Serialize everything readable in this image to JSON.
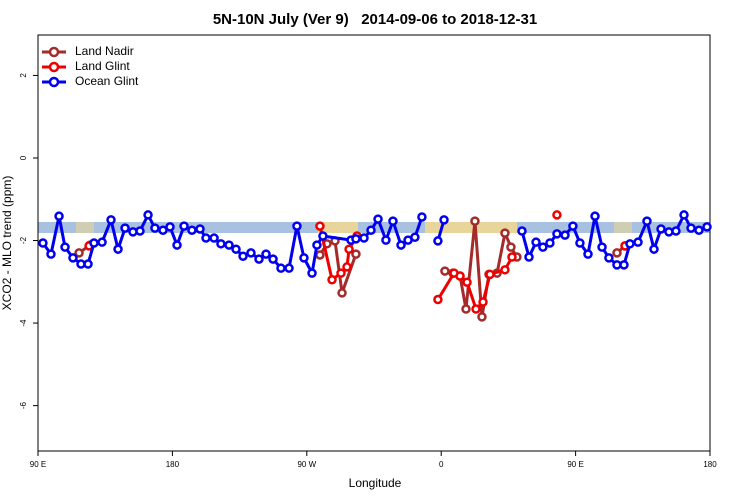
{
  "chart_data": {
    "type": "line",
    "title": "5N-10N July (Ver 9)   2014-09-06 to 2018-12-31",
    "x_label": "Longitude",
    "y_label": "XCO2 - MLO trend (ppm)",
    "xlim": [
      90,
      540
    ],
    "ylim": [
      -7.1,
      2.98
    ],
    "xticks": [
      {
        "value": 90,
        "label": "90 E"
      },
      180,
      {
        "value": 270,
        "label": "90 W"
      },
      {
        "value": 360,
        "label": "0"
      },
      {
        "value": 450,
        "label": "90 E"
      },
      {
        "value": 540,
        "label": "180"
      }
    ],
    "yticks": [
      -6,
      -4,
      -2,
      0,
      2
    ],
    "legend": "top-left",
    "series": [
      {
        "name": "Land Nadir",
        "color": "#a52a2a",
        "x": [
          117.5,
          124.8,
          null,
          278.8,
          283.5,
          288.9,
          293.6,
          302.9,
          null,
          362.5,
          367.9,
          372.6,
          376.6,
          382.6,
          387.3,
          392.0,
          397.4,
          402.7,
          406.7,
          410.7,
          null,
          477.7,
          483.1
        ],
        "values": [
          -2.3,
          -2.11,
          null,
          -2.35,
          -2.08,
          -2.01,
          -3.27,
          -2.33,
          null,
          -2.74,
          -2.79,
          -2.86,
          -3.66,
          -1.53,
          -3.85,
          -2.82,
          -2.79,
          -1.82,
          -2.16,
          -2.4,
          null,
          -2.3,
          -2.13
        ]
      },
      {
        "name": "Land Glint",
        "color": "#ee0000",
        "x": [
          124.2,
          null,
          278.8,
          286.9,
          292.9,
          296.9,
          298.3,
          303.6,
          null,
          357.8,
          368.6,
          372.6,
          377.3,
          383.3,
          388.0,
          392.7,
          402.7,
          407.4,
          null,
          437.5,
          null,
          483.1
        ],
        "values": [
          -2.13,
          null,
          -1.65,
          -2.95,
          -2.79,
          -2.64,
          -2.21,
          -1.89,
          null,
          -3.43,
          -2.79,
          -2.86,
          -3.01,
          -3.66,
          -3.49,
          -2.82,
          -2.71,
          -2.4,
          null,
          -1.38,
          null,
          -2.13
        ]
      },
      {
        "name": "Ocean Glint",
        "color": "#0000ee",
        "x": [
          93.3,
          98.7,
          104.1,
          108.1,
          113.4,
          118.8,
          123.5,
          127.5,
          132.9,
          138.9,
          143.6,
          148.3,
          153.6,
          158.3,
          163.7,
          168.3,
          173.7,
          178.4,
          183.1,
          187.8,
          193.1,
          198.5,
          202.5,
          207.9,
          212.5,
          217.9,
          222.6,
          227.3,
          232.6,
          238.0,
          242.7,
          247.4,
          252.7,
          258.1,
          263.4,
          268.1,
          273.5,
          276.8,
          280.8,
          299.6,
          302.9,
          308.3,
          313.0,
          317.7,
          323.0,
          327.7,
          333.1,
          337.8,
          342.4,
          347.1,
          null,
          357.8,
          361.9,
          null,
          414.1,
          418.8,
          423.5,
          428.1,
          432.8,
          437.5,
          442.9,
          448.2,
          452.9,
          458.3,
          463.0,
          467.7,
          472.3,
          477.7,
          482.4,
          486.4,
          491.8,
          497.8,
          502.5,
          507.2,
          512.5,
          517.2,
          522.6,
          527.3,
          532.6,
          538.0
        ],
        "values": [
          -2.06,
          -2.33,
          -1.41,
          -2.16,
          -2.42,
          -2.57,
          -2.57,
          -2.06,
          -2.04,
          -1.5,
          -2.21,
          -1.7,
          -1.79,
          -1.77,
          -1.38,
          -1.7,
          -1.75,
          -1.67,
          -2.11,
          -1.65,
          -1.75,
          -1.72,
          -1.94,
          -1.94,
          -2.08,
          -2.11,
          -2.21,
          -2.38,
          -2.3,
          -2.45,
          -2.33,
          -2.45,
          -2.67,
          -2.67,
          -1.65,
          -2.42,
          -2.79,
          -2.11,
          -1.89,
          -1.99,
          -1.96,
          -1.94,
          -1.75,
          -1.48,
          -1.99,
          -1.53,
          -2.11,
          -1.99,
          -1.92,
          -1.43,
          null,
          -2.01,
          -1.5,
          null,
          -1.77,
          -2.4,
          -2.04,
          -2.16,
          -2.06,
          -1.84,
          -1.87,
          -1.65,
          -2.06,
          -2.33,
          -1.41,
          -2.16,
          -2.42,
          -2.59,
          -2.59,
          -2.08,
          -2.04,
          -1.53,
          -2.21,
          -1.72,
          -1.79,
          -1.77,
          -1.38,
          -1.7,
          -1.75,
          -1.67
        ]
      }
    ]
  }
}
